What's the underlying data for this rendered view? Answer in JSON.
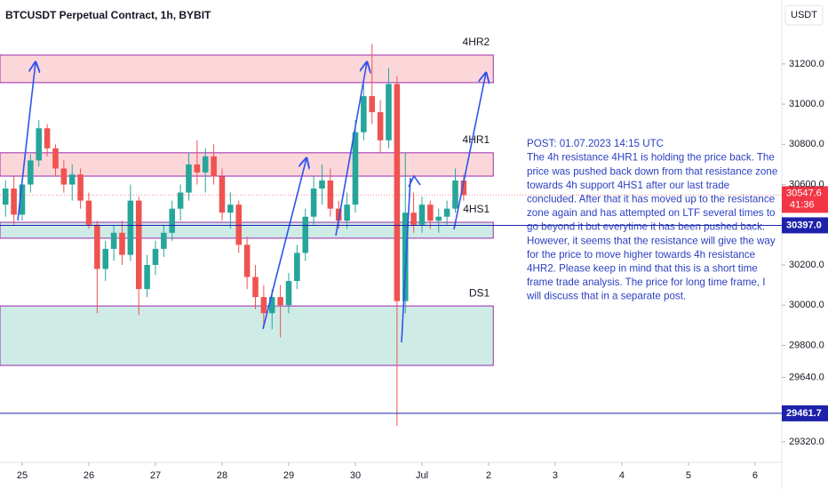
{
  "chart_data": {
    "type": "candlestick",
    "title": "BTCUSDT Perpetual Contract, 1h, BYBIT",
    "currency": "USDT",
    "x": [
      24.75,
      24.875,
      25,
      25.125,
      25.25,
      25.375,
      25.5,
      25.625,
      25.75,
      25.875,
      26,
      26.125,
      26.25,
      26.375,
      26.5,
      26.625,
      26.75,
      26.875,
      27,
      27.125,
      27.25,
      27.375,
      27.5,
      27.625,
      27.75,
      27.875,
      28,
      28.125,
      28.25,
      28.375,
      28.5,
      28.625,
      28.75,
      28.875,
      29,
      29.125,
      29.25,
      29.375,
      29.5,
      29.625,
      29.75,
      29.875,
      30,
      30.125,
      30.25,
      30.375,
      30.5,
      30.625,
      30.75,
      30.875,
      31,
      31.125,
      31.25,
      31.375,
      31.5,
      31.625
    ],
    "open": [
      30500,
      30580,
      30450,
      30600,
      30720,
      30880,
      30780,
      30680,
      30600,
      30650,
      30520,
      30400,
      30180,
      30280,
      30360,
      30250,
      30520,
      30080,
      30200,
      30280,
      30360,
      30480,
      30560,
      30700,
      30660,
      30740,
      30640,
      30460,
      30500,
      30300,
      30140,
      30040,
      29960,
      30040,
      30000,
      30120,
      30260,
      30440,
      30580,
      30620,
      30480,
      30420,
      30500,
      30860,
      31040,
      30960,
      30820,
      31100,
      30020,
      30460,
      30400,
      30500,
      30420,
      30440,
      30480,
      30620
    ],
    "high": [
      30620,
      30640,
      30620,
      30750,
      30920,
      30900,
      30800,
      30720,
      30700,
      30680,
      30560,
      30420,
      30320,
      30400,
      30420,
      30600,
      30540,
      30250,
      30320,
      30400,
      30520,
      30600,
      30760,
      30820,
      30780,
      30800,
      30680,
      30560,
      30520,
      30340,
      30200,
      30100,
      30080,
      30100,
      30160,
      30300,
      30480,
      30640,
      30700,
      30680,
      30520,
      30560,
      30920,
      31100,
      31300,
      31020,
      31180,
      31140,
      30760,
      30560,
      30540,
      30520,
      30480,
      30520,
      30680,
      30650
    ],
    "low": [
      30440,
      30400,
      30420,
      30560,
      30690,
      30740,
      30640,
      30560,
      30520,
      30480,
      30380,
      29960,
      30120,
      30220,
      30200,
      30220,
      29950,
      30040,
      30150,
      30240,
      30320,
      30420,
      30520,
      30600,
      30560,
      30600,
      30420,
      30380,
      30260,
      30080,
      29980,
      29900,
      29880,
      29840,
      29960,
      30080,
      30220,
      30400,
      30500,
      30440,
      30380,
      30380,
      30460,
      30820,
      30900,
      30760,
      30780,
      29400,
      29960,
      30360,
      30360,
      30380,
      30360,
      30400,
      30460,
      30520
    ],
    "close": [
      30580,
      30450,
      30600,
      30720,
      30880,
      30780,
      30680,
      30600,
      30650,
      30520,
      30400,
      30180,
      30280,
      30360,
      30250,
      30520,
      30080,
      30200,
      30280,
      30360,
      30480,
      30560,
      30700,
      30660,
      30740,
      30640,
      30460,
      30500,
      30300,
      30140,
      30040,
      29960,
      30040,
      30000,
      30120,
      30260,
      30440,
      30580,
      30620,
      30480,
      30420,
      30500,
      30860,
      31040,
      30960,
      30820,
      31100,
      30020,
      30460,
      30400,
      30500,
      30420,
      30440,
      30480,
      30620,
      30547.6
    ],
    "up_color": "#26a69a",
    "down_color": "#ef5350",
    "xlim": [
      24.667,
      36.4
    ],
    "ylim": [
      29218,
      31518
    ],
    "xticks": [
      25,
      26,
      27,
      28,
      29,
      30,
      {
        "value": 31,
        "label": "Jul"
      },
      {
        "value": 32,
        "label": "2"
      },
      {
        "value": 33,
        "label": "3"
      },
      {
        "value": 34,
        "label": "4"
      },
      {
        "value": 35,
        "label": "5"
      },
      {
        "value": 36,
        "label": "6"
      }
    ],
    "yticks": [
      {
        "value": 31200,
        "label": "31200.0"
      },
      {
        "value": 31000,
        "label": "31000.0"
      },
      {
        "value": 30800,
        "label": "30800.0"
      },
      {
        "value": 30600,
        "label": "30600.0"
      },
      {
        "value": 30200,
        "label": "30200.0"
      },
      {
        "value": 30000,
        "label": "30000.0"
      },
      {
        "value": 29800,
        "label": "29800.0"
      },
      {
        "value": 29640,
        "label": "29640.0"
      },
      {
        "value": 29320,
        "label": "29320.0"
      }
    ],
    "zones": [
      {
        "label": "4HR2",
        "low": 31107,
        "high": 31244,
        "end": 32.07,
        "color": "#f23645"
      },
      {
        "label": "4HR1",
        "low": 30642,
        "high": 30758,
        "end": 32.07,
        "color": "#f23645"
      },
      {
        "label": "4HS1",
        "low": 30333,
        "high": 30412,
        "end": 32.07,
        "color": "#089981"
      },
      {
        "label": "DS1",
        "low": 29700,
        "high": 29996,
        "end": 32.07,
        "color": "#089981"
      }
    ],
    "zone_border": "#9c27b0",
    "price_lines": [
      {
        "value": 30397.0,
        "label": "30397.0",
        "color": "#1e22aa"
      },
      {
        "value": 29461.7,
        "label": "29461.7",
        "color": "#1e22aa"
      }
    ],
    "last_price": {
      "value": 30547.6,
      "label": "30547.6",
      "countdown": "41:36",
      "color": "#f23645"
    },
    "annotation": [
      "POST: 01.07.2023 14:15 UTC",
      "The 4h resistance 4HR1 is holding the price back. The",
      "price was pushed back down from that resistance zone",
      "towards 4h support 4HS1 after our last trade",
      "concluded. After that it has moved up to the resistance",
      "zone again and has attempted on LTF several times to",
      "go beyond it but everytime it has been pushed back.",
      "However, it seems that the resistance will give the way",
      "for the price to move higher towards 4h resistance",
      "4HR2. Please keep in mind that this is a short time",
      "frame trade analysis. The price for long time frame, I",
      "will discuss that in a separate post."
    ]
  }
}
